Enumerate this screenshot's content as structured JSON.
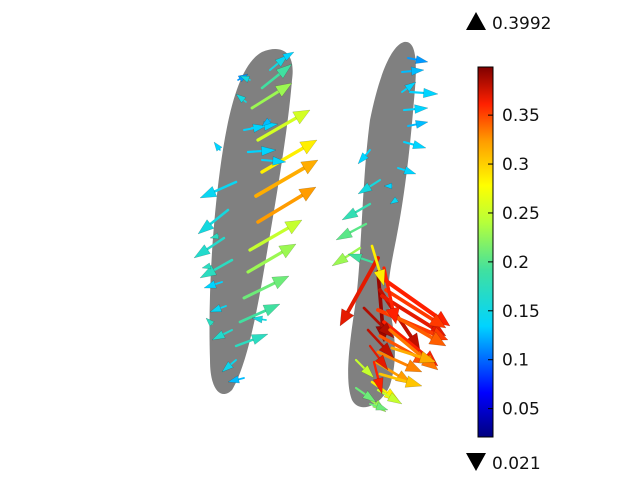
{
  "chart_data": {
    "type": "vector-field-3d",
    "colorbar": {
      "max_label": "0.3992",
      "min_label": "0.021",
      "vmin": 0.021,
      "vmax": 0.3992,
      "ticks": [
        {
          "value": 0.05,
          "label": "0.05"
        },
        {
          "value": 0.1,
          "label": "0.1"
        },
        {
          "value": 0.15,
          "label": "0.15"
        },
        {
          "value": 0.2,
          "label": "0.2"
        },
        {
          "value": 0.25,
          "label": "0.25"
        },
        {
          "value": 0.3,
          "label": "0.3"
        },
        {
          "value": 0.35,
          "label": "0.35"
        }
      ],
      "colormap": "rainbow"
    },
    "surface_color": "#808080"
  }
}
